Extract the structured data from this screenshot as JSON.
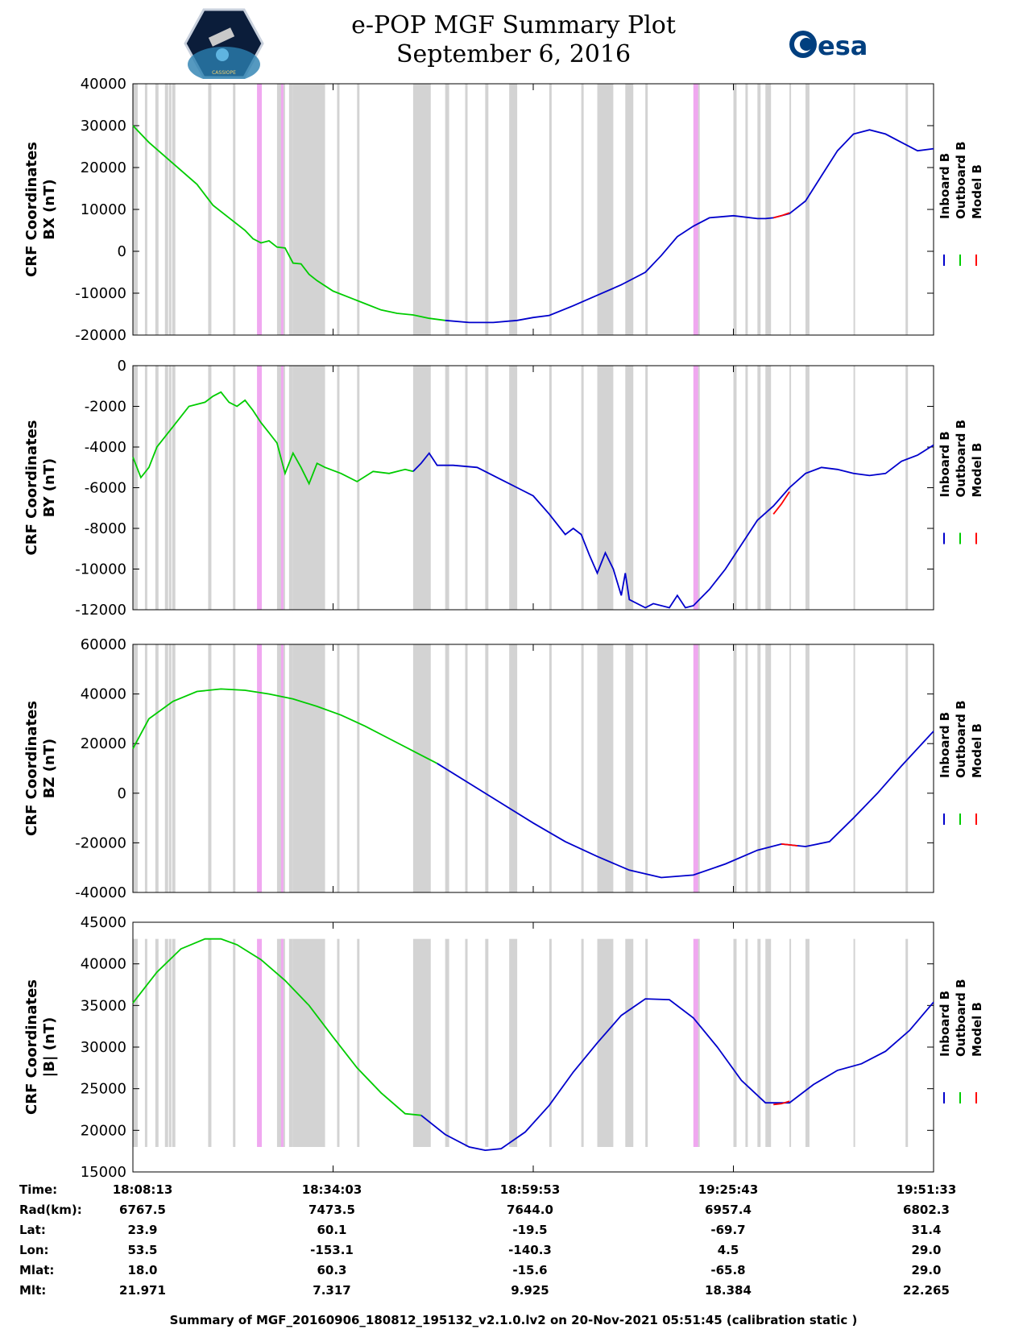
{
  "title": {
    "line1": "e-POP MGF Summary Plot",
    "line2": "September 6, 2016"
  },
  "logos": {
    "left_icon": "cassiope-mission-badge",
    "left_text": "CASSIOPE",
    "right_icon": "esa-logo",
    "right_text": "esa"
  },
  "colors": {
    "inboard": "#0000cc",
    "outboard": "#00cc00",
    "model": "#ff0000",
    "gap_gray": "#d3d3d3",
    "gap_pink": "#f0a8f0"
  },
  "legend": [
    "Inboard B",
    "Outboard B",
    "Model B"
  ],
  "chart_data": [
    {
      "type": "line",
      "ylabel_line1": "CRF Coordinates",
      "ylabel_line2": "BX (nT)",
      "ylim": [
        -20000,
        40000
      ],
      "yticks": [
        "40000",
        "30000",
        "20000",
        "10000",
        "0",
        "-10000",
        "-20000"
      ],
      "xlim": [
        0,
        1
      ],
      "series": [
        {
          "name": "Outboard B",
          "x": [
            0,
            0.02,
            0.05,
            0.08,
            0.1,
            0.12,
            0.14,
            0.15,
            0.16,
            0.17,
            0.18,
            0.19,
            0.2,
            0.21,
            0.22,
            0.23,
            0.25,
            0.27,
            0.29,
            0.31,
            0.33,
            0.35,
            0.37,
            0.39
          ],
          "values": [
            30000,
            26000,
            21000,
            16000,
            11000,
            8000,
            5000,
            3000,
            2000,
            2500,
            1000,
            800,
            -2800,
            -3000,
            -5500,
            -7000,
            -9500,
            -11000,
            -12500,
            -14000,
            -14800,
            -15200,
            -16000,
            -16500
          ]
        },
        {
          "name": "Inboard B",
          "x": [
            0.39,
            0.42,
            0.45,
            0.48,
            0.5,
            0.52,
            0.55,
            0.58,
            0.61,
            0.615,
            0.64,
            0.66,
            0.68,
            0.7,
            0.72,
            0.75,
            0.78,
            0.79,
            0.8,
            0.82,
            0.84,
            0.86,
            0.88,
            0.9,
            0.92,
            0.94,
            0.96,
            0.98,
            1.0
          ],
          "values": [
            -16500,
            -17000,
            -17000,
            -16500,
            -15800,
            -15300,
            -13000,
            -10500,
            -8000,
            -7500,
            -5000,
            -1000,
            3500,
            6000,
            8000,
            8500,
            7800,
            7800,
            8000,
            9000,
            12000,
            18000,
            24000,
            28000,
            29000,
            28000,
            26000,
            24000,
            24500
          ]
        },
        {
          "name": "Model B",
          "x": [
            0.8,
            0.81,
            0.82
          ],
          "values": [
            8000,
            8500,
            9200
          ]
        }
      ],
      "gray_bands": [
        [
          0.0,
          0.006
        ],
        [
          0.015,
          0.018
        ],
        [
          0.028,
          0.032
        ],
        [
          0.04,
          0.044
        ],
        [
          0.045,
          0.048
        ],
        [
          0.049,
          0.053
        ],
        [
          0.094,
          0.098
        ],
        [
          0.125,
          0.128
        ],
        [
          0.18,
          0.19
        ],
        [
          0.195,
          0.2
        ],
        [
          0.2,
          0.24
        ],
        [
          0.255,
          0.258
        ],
        [
          0.28,
          0.283
        ],
        [
          0.35,
          0.372
        ],
        [
          0.39,
          0.395
        ],
        [
          0.415,
          0.418
        ],
        [
          0.44,
          0.444
        ],
        [
          0.47,
          0.48
        ],
        [
          0.52,
          0.523
        ],
        [
          0.56,
          0.563
        ],
        [
          0.58,
          0.6
        ],
        [
          0.615,
          0.625
        ],
        [
          0.64,
          0.643
        ],
        [
          0.705,
          0.708
        ],
        [
          0.75,
          0.754
        ],
        [
          0.765,
          0.768
        ],
        [
          0.78,
          0.784
        ],
        [
          0.79,
          0.797
        ],
        [
          0.82,
          0.822
        ],
        [
          0.84,
          0.845
        ],
        [
          0.9,
          0.902
        ],
        [
          0.965,
          0.968
        ]
      ],
      "pink_bands": [
        [
          0.155,
          0.161
        ],
        [
          0.185,
          0.188
        ],
        [
          0.7,
          0.706
        ]
      ]
    },
    {
      "type": "line",
      "ylabel_line1": "CRF Coordinates",
      "ylabel_line2": "BY (nT)",
      "ylim": [
        -12000,
        0
      ],
      "yticks": [
        "0",
        "-2000",
        "-4000",
        "-6000",
        "-8000",
        "-10000",
        "-12000"
      ],
      "xlim": [
        0,
        1
      ],
      "series": [
        {
          "name": "Outboard B",
          "x": [
            0,
            0.01,
            0.02,
            0.03,
            0.05,
            0.07,
            0.09,
            0.1,
            0.11,
            0.12,
            0.13,
            0.14,
            0.15,
            0.16,
            0.17,
            0.18,
            0.19,
            0.2,
            0.21,
            0.22,
            0.23,
            0.24,
            0.26,
            0.28,
            0.3,
            0.32,
            0.34,
            0.35
          ],
          "values": [
            -4500,
            -5500,
            -5000,
            -4000,
            -3000,
            -2000,
            -1800,
            -1500,
            -1300,
            -1800,
            -2000,
            -1700,
            -2200,
            -2800,
            -3300,
            -3800,
            -5300,
            -4300,
            -5000,
            -5800,
            -4800,
            -5000,
            -5300,
            -5700,
            -5200,
            -5300,
            -5100,
            -5200
          ]
        },
        {
          "name": "Inboard B",
          "x": [
            0.35,
            0.36,
            0.37,
            0.38,
            0.4,
            0.43,
            0.46,
            0.48,
            0.5,
            0.52,
            0.54,
            0.55,
            0.56,
            0.57,
            0.58,
            0.59,
            0.6,
            0.61,
            0.615,
            0.62,
            0.64,
            0.65,
            0.67,
            0.68,
            0.69,
            0.7,
            0.71,
            0.72,
            0.74,
            0.76,
            0.78,
            0.8,
            0.82,
            0.84,
            0.86,
            0.88,
            0.9,
            0.92,
            0.94,
            0.96,
            0.98,
            1.0
          ],
          "values": [
            -5200,
            -4800,
            -4300,
            -4900,
            -4900,
            -5000,
            -5600,
            -6000,
            -6400,
            -7300,
            -8300,
            -8000,
            -8300,
            -9300,
            -10200,
            -9200,
            -10000,
            -11300,
            -10200,
            -11500,
            -11900,
            -11700,
            -11900,
            -11300,
            -11900,
            -11800,
            -11400,
            -11000,
            -10000,
            -8800,
            -7600,
            -6900,
            -6000,
            -5300,
            -5000,
            -5100,
            -5300,
            -5400,
            -5300,
            -4700,
            -4400,
            -3900
          ]
        },
        {
          "name": "Model B",
          "x": [
            0.8,
            0.81,
            0.82
          ],
          "values": [
            -7300,
            -6800,
            -6200
          ]
        }
      ],
      "gray_bands": [
        [
          0.0,
          0.006
        ],
        [
          0.015,
          0.018
        ],
        [
          0.028,
          0.032
        ],
        [
          0.04,
          0.044
        ],
        [
          0.045,
          0.048
        ],
        [
          0.049,
          0.053
        ],
        [
          0.094,
          0.098
        ],
        [
          0.125,
          0.128
        ],
        [
          0.18,
          0.19
        ],
        [
          0.195,
          0.2
        ],
        [
          0.2,
          0.24
        ],
        [
          0.255,
          0.258
        ],
        [
          0.28,
          0.283
        ],
        [
          0.35,
          0.372
        ],
        [
          0.39,
          0.395
        ],
        [
          0.415,
          0.418
        ],
        [
          0.44,
          0.444
        ],
        [
          0.47,
          0.48
        ],
        [
          0.52,
          0.523
        ],
        [
          0.56,
          0.563
        ],
        [
          0.58,
          0.6
        ],
        [
          0.615,
          0.625
        ],
        [
          0.64,
          0.643
        ],
        [
          0.705,
          0.708
        ],
        [
          0.75,
          0.754
        ],
        [
          0.765,
          0.768
        ],
        [
          0.78,
          0.784
        ],
        [
          0.79,
          0.797
        ],
        [
          0.82,
          0.822
        ],
        [
          0.84,
          0.845
        ],
        [
          0.9,
          0.902
        ],
        [
          0.965,
          0.968
        ]
      ],
      "pink_bands": [
        [
          0.155,
          0.161
        ],
        [
          0.185,
          0.188
        ],
        [
          0.7,
          0.706
        ]
      ]
    },
    {
      "type": "line",
      "ylabel_line1": "CRF Coordinates",
      "ylabel_line2": "BZ (nT)",
      "ylim": [
        -40000,
        60000
      ],
      "yticks": [
        "60000",
        "40000",
        "20000",
        "0",
        "-20000",
        "-40000"
      ],
      "xlim": [
        0,
        1
      ],
      "series": [
        {
          "name": "Outboard B",
          "x": [
            0,
            0.02,
            0.05,
            0.08,
            0.11,
            0.14,
            0.17,
            0.2,
            0.23,
            0.26,
            0.29,
            0.32,
            0.35,
            0.38
          ],
          "values": [
            18000,
            30000,
            37000,
            41000,
            42000,
            41500,
            40000,
            38000,
            35000,
            31500,
            27000,
            22000,
            17000,
            12000
          ]
        },
        {
          "name": "Inboard B",
          "x": [
            0.38,
            0.42,
            0.46,
            0.5,
            0.54,
            0.58,
            0.62,
            0.66,
            0.7,
            0.74,
            0.78,
            0.81,
            0.84,
            0.87,
            0.9,
            0.93,
            0.96,
            1.0
          ],
          "values": [
            12000,
            4000,
            -4000,
            -12000,
            -19500,
            -25500,
            -31000,
            -34000,
            -33000,
            -28500,
            -23000,
            -20500,
            -21500,
            -19500,
            -10000,
            0,
            11000,
            25000
          ]
        },
        {
          "name": "Model B",
          "x": [
            0.81,
            0.82,
            0.83
          ],
          "values": [
            -20500,
            -20800,
            -21200
          ]
        }
      ],
      "gray_bands": [
        [
          0.0,
          0.006
        ],
        [
          0.015,
          0.018
        ],
        [
          0.028,
          0.032
        ],
        [
          0.04,
          0.044
        ],
        [
          0.045,
          0.048
        ],
        [
          0.049,
          0.053
        ],
        [
          0.094,
          0.098
        ],
        [
          0.125,
          0.128
        ],
        [
          0.18,
          0.19
        ],
        [
          0.195,
          0.2
        ],
        [
          0.2,
          0.24
        ],
        [
          0.255,
          0.258
        ],
        [
          0.28,
          0.283
        ],
        [
          0.35,
          0.372
        ],
        [
          0.39,
          0.395
        ],
        [
          0.415,
          0.418
        ],
        [
          0.44,
          0.444
        ],
        [
          0.47,
          0.48
        ],
        [
          0.52,
          0.523
        ],
        [
          0.56,
          0.563
        ],
        [
          0.58,
          0.6
        ],
        [
          0.615,
          0.625
        ],
        [
          0.64,
          0.643
        ],
        [
          0.705,
          0.708
        ],
        [
          0.75,
          0.754
        ],
        [
          0.765,
          0.768
        ],
        [
          0.78,
          0.784
        ],
        [
          0.79,
          0.797
        ],
        [
          0.82,
          0.822
        ],
        [
          0.84,
          0.845
        ],
        [
          0.9,
          0.902
        ],
        [
          0.965,
          0.968
        ]
      ],
      "pink_bands": [
        [
          0.155,
          0.161
        ],
        [
          0.185,
          0.188
        ],
        [
          0.7,
          0.706
        ]
      ]
    },
    {
      "type": "line",
      "ylabel_line1": "CRF Coordinates",
      "ylabel_line2": "|B| (nT)",
      "ylim": [
        15000,
        45000
      ],
      "yticks": [
        "45000",
        "40000",
        "35000",
        "30000",
        "25000",
        "20000",
        "15000"
      ],
      "xlim": [
        0,
        1
      ],
      "series": [
        {
          "name": "Outboard B",
          "x": [
            0,
            0.03,
            0.06,
            0.09,
            0.11,
            0.13,
            0.16,
            0.19,
            0.22,
            0.25,
            0.28,
            0.31,
            0.34,
            0.36
          ],
          "values": [
            35300,
            39000,
            41800,
            43000,
            43000,
            42300,
            40500,
            38000,
            35000,
            31200,
            27500,
            24500,
            22000,
            21800
          ]
        },
        {
          "name": "Inboard B",
          "x": [
            0.36,
            0.39,
            0.42,
            0.44,
            0.46,
            0.49,
            0.52,
            0.55,
            0.58,
            0.61,
            0.64,
            0.67,
            0.7,
            0.73,
            0.76,
            0.79,
            0.82,
            0.85,
            0.88,
            0.91,
            0.94,
            0.97,
            1.0
          ],
          "values": [
            21800,
            19500,
            18000,
            17600,
            17800,
            19800,
            23000,
            27000,
            30500,
            33800,
            35800,
            35700,
            33500,
            30000,
            26000,
            23300,
            23300,
            25500,
            27200,
            28000,
            29500,
            32000,
            35400
          ]
        },
        {
          "name": "Model B",
          "x": [
            0.8,
            0.81,
            0.82
          ],
          "values": [
            23100,
            23200,
            23500
          ]
        }
      ],
      "gray_bands": [
        [
          0.0,
          0.006
        ],
        [
          0.015,
          0.018
        ],
        [
          0.028,
          0.032
        ],
        [
          0.04,
          0.044
        ],
        [
          0.045,
          0.048
        ],
        [
          0.049,
          0.053
        ],
        [
          0.094,
          0.098
        ],
        [
          0.125,
          0.128
        ],
        [
          0.18,
          0.19
        ],
        [
          0.195,
          0.2
        ],
        [
          0.2,
          0.24
        ],
        [
          0.255,
          0.258
        ],
        [
          0.28,
          0.283
        ],
        [
          0.35,
          0.372
        ],
        [
          0.39,
          0.395
        ],
        [
          0.415,
          0.418
        ],
        [
          0.44,
          0.444
        ],
        [
          0.47,
          0.48
        ],
        [
          0.52,
          0.523
        ],
        [
          0.56,
          0.563
        ],
        [
          0.58,
          0.6
        ],
        [
          0.615,
          0.625
        ],
        [
          0.64,
          0.643
        ],
        [
          0.705,
          0.708
        ],
        [
          0.75,
          0.754
        ],
        [
          0.765,
          0.768
        ],
        [
          0.78,
          0.784
        ],
        [
          0.79,
          0.797
        ],
        [
          0.82,
          0.822
        ],
        [
          0.84,
          0.845
        ],
        [
          0.9,
          0.902
        ],
        [
          0.965,
          0.968
        ]
      ],
      "pink_bands": [
        [
          0.155,
          0.161
        ],
        [
          0.185,
          0.188
        ],
        [
          0.7,
          0.706
        ]
      ],
      "band_ylim": [
        18000,
        43000
      ]
    }
  ],
  "info_table": {
    "labels": [
      "Time:",
      "Rad(km):",
      "Lat:",
      "Lon:",
      "Mlat:",
      "Mlt:"
    ],
    "columns": [
      [
        "18:08:13",
        "6767.5",
        "23.9",
        "53.5",
        "18.0",
        "21.971"
      ],
      [
        "18:34:03",
        "7473.5",
        "60.1",
        "-153.1",
        "60.3",
        "7.317"
      ],
      [
        "18:59:53",
        "7644.0",
        "-19.5",
        "-140.3",
        "-15.6",
        "9.925"
      ],
      [
        "19:25:43",
        "6957.4",
        "-69.7",
        "4.5",
        "-65.8",
        "18.384"
      ],
      [
        "19:51:33",
        "6802.3",
        "31.4",
        "29.0",
        "29.0",
        "22.265"
      ]
    ]
  },
  "footer": "Summary of MGF_20160906_180812_195132_v2.1.0.lv2 on 20-Nov-2021 05:51:45 (calibration static )"
}
